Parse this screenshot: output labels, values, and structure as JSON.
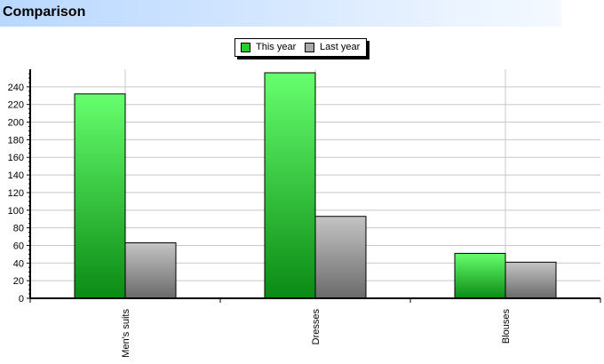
{
  "header": {
    "title": "Comparison"
  },
  "legend": {
    "items": [
      {
        "label": "This year",
        "color": "#2dcc2d"
      },
      {
        "label": "Last year",
        "color": "#a8a8a8"
      }
    ]
  },
  "chart_data": {
    "type": "bar",
    "categories": [
      "Men's suits",
      "Dresses",
      "Blouses"
    ],
    "series": [
      {
        "name": "This year",
        "values": [
          232,
          256,
          51
        ]
      },
      {
        "name": "Last year",
        "values": [
          63,
          93,
          41
        ]
      }
    ],
    "ylim": [
      0,
      260
    ],
    "yticks": [
      0,
      20,
      40,
      60,
      80,
      100,
      120,
      140,
      160,
      180,
      200,
      220,
      240
    ],
    "grid": true,
    "legend_position": "top"
  }
}
